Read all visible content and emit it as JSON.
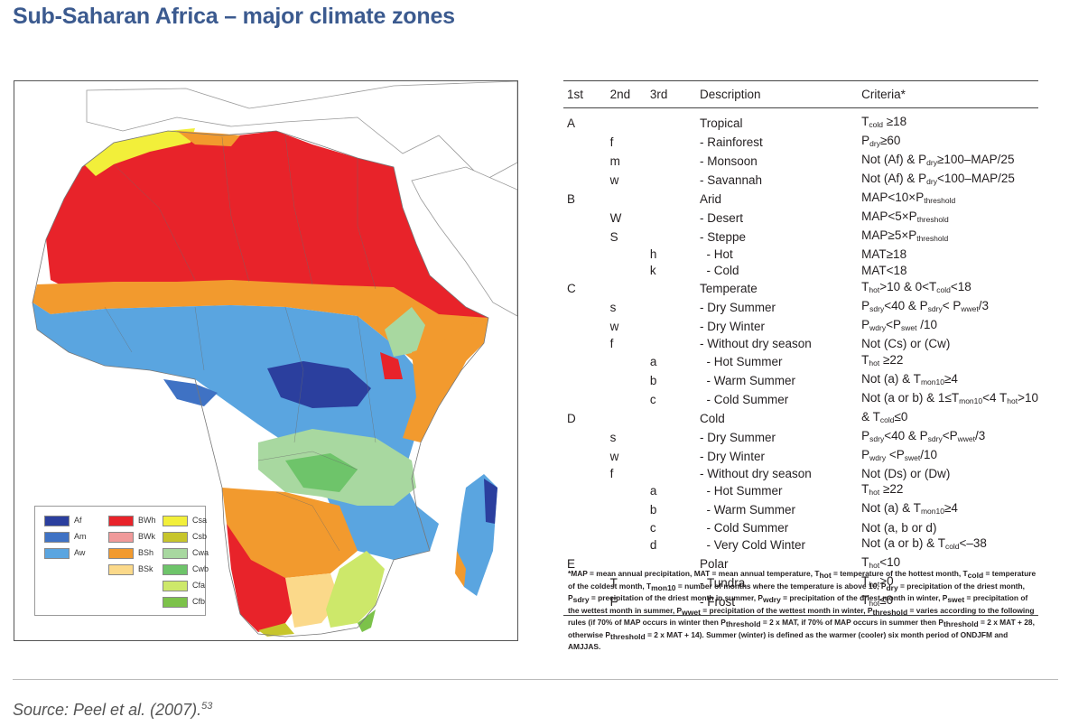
{
  "title": "Sub-Saharan Africa – major climate zones",
  "legend": [
    {
      "code": "Af",
      "color": "#2b3f9e"
    },
    {
      "code": "Am",
      "color": "#3f72c4"
    },
    {
      "code": "Aw",
      "color": "#5aa5e0"
    },
    {
      "code": "BWh",
      "color": "#e8232a"
    },
    {
      "code": "BWk",
      "color": "#f09a9a"
    },
    {
      "code": "BSh",
      "color": "#f29a2e"
    },
    {
      "code": "BSk",
      "color": "#fbd98a"
    },
    {
      "code": "Csa",
      "color": "#f2ef3a"
    },
    {
      "code": "Csb",
      "color": "#c7c52b"
    },
    {
      "code": "Cwa",
      "color": "#a8d8a0"
    },
    {
      "code": "Cwb",
      "color": "#6ec46a"
    },
    {
      "code": "Cfa",
      "color": "#cde86a"
    },
    {
      "code": "Cfb",
      "color": "#7cc24a"
    }
  ],
  "table": {
    "headers": [
      "1st",
      "2nd",
      "3rd",
      "Description",
      "Criteria*"
    ],
    "rows": [
      {
        "c1": "A",
        "c2": "",
        "c3": "",
        "desc": "Tropical",
        "crit": [
          {
            "t": "T"
          },
          {
            "s": "cold"
          },
          {
            "t": " ≥18"
          }
        ]
      },
      {
        "c1": "",
        "c2": "f",
        "c3": "",
        "desc": "- Rainforest",
        "crit": [
          {
            "t": "P"
          },
          {
            "s": "dry"
          },
          {
            "t": "≥60"
          }
        ]
      },
      {
        "c1": "",
        "c2": "m",
        "c3": "",
        "desc": "- Monsoon",
        "crit": [
          {
            "t": "Not (Af) & P"
          },
          {
            "s": "dry"
          },
          {
            "t": "≥100–MAP/25"
          }
        ]
      },
      {
        "c1": "",
        "c2": "w",
        "c3": "",
        "desc": "- Savannah",
        "crit": [
          {
            "t": "Not (Af) & P"
          },
          {
            "s": "dry"
          },
          {
            "t": "<100–MAP/25"
          }
        ]
      },
      {
        "c1": "B",
        "c2": "",
        "c3": "",
        "desc": "Arid",
        "crit": [
          {
            "t": "MAP<10×P"
          },
          {
            "s": "threshold"
          }
        ]
      },
      {
        "c1": "",
        "c2": "W",
        "c3": "",
        "desc": "- Desert",
        "crit": [
          {
            "t": "MAP<5×P"
          },
          {
            "s": "threshold"
          }
        ]
      },
      {
        "c1": "",
        "c2": "S",
        "c3": "",
        "desc": "- Steppe",
        "crit": [
          {
            "t": "MAP≥5×P"
          },
          {
            "s": "threshold"
          }
        ]
      },
      {
        "c1": "",
        "c2": "",
        "c3": "h",
        "desc": "  - Hot",
        "crit": [
          {
            "t": "MAT≥18"
          }
        ]
      },
      {
        "c1": "",
        "c2": "",
        "c3": "k",
        "desc": "  - Cold",
        "crit": [
          {
            "t": "MAT<18"
          }
        ]
      },
      {
        "c1": "C",
        "c2": "",
        "c3": "",
        "desc": "Temperate",
        "crit": [
          {
            "t": "T"
          },
          {
            "s": "hot"
          },
          {
            "t": ">10 & 0<T"
          },
          {
            "s": "cold"
          },
          {
            "t": "<18"
          }
        ]
      },
      {
        "c1": "",
        "c2": "s",
        "c3": "",
        "desc": "- Dry Summer",
        "crit": [
          {
            "t": "P"
          },
          {
            "s": "sdry"
          },
          {
            "t": "<40 & P"
          },
          {
            "s": "sdry"
          },
          {
            "t": "< P"
          },
          {
            "s": "wwet"
          },
          {
            "t": "/3"
          }
        ]
      },
      {
        "c1": "",
        "c2": "w",
        "c3": "",
        "desc": "- Dry Winter",
        "crit": [
          {
            "t": "P"
          },
          {
            "s": "wdry"
          },
          {
            "t": "<P"
          },
          {
            "s": "swet"
          },
          {
            "t": " /10"
          }
        ]
      },
      {
        "c1": "",
        "c2": "f",
        "c3": "",
        "desc": "- Without dry season",
        "crit": [
          {
            "t": "Not (Cs) or (Cw)"
          }
        ]
      },
      {
        "c1": "",
        "c2": "",
        "c3": "a",
        "desc": "  - Hot Summer",
        "crit": [
          {
            "t": "T"
          },
          {
            "s": "hot"
          },
          {
            "t": " ≥22"
          }
        ]
      },
      {
        "c1": "",
        "c2": "",
        "c3": "b",
        "desc": "  - Warm Summer",
        "crit": [
          {
            "t": "Not (a) & T"
          },
          {
            "s": "mon10"
          },
          {
            "t": "≥4"
          }
        ]
      },
      {
        "c1": "",
        "c2": "",
        "c3": "c",
        "desc": "  - Cold Summer",
        "crit": [
          {
            "t": "Not (a or b) & 1≤T"
          },
          {
            "s": "mon10"
          },
          {
            "t": "<4 T"
          },
          {
            "s": "hot"
          },
          {
            "t": ">10"
          }
        ]
      },
      {
        "c1": "D",
        "c2": "",
        "c3": "",
        "desc": "Cold",
        "crit": [
          {
            "t": "& T"
          },
          {
            "s": "cold"
          },
          {
            "t": "≤0"
          }
        ]
      },
      {
        "c1": "",
        "c2": "s",
        "c3": "",
        "desc": "- Dry Summer",
        "crit": [
          {
            "t": "P"
          },
          {
            "s": "sdry"
          },
          {
            "t": "<40 & P"
          },
          {
            "s": "sdry"
          },
          {
            "t": "<P"
          },
          {
            "s": "wwet"
          },
          {
            "t": "/3"
          }
        ]
      },
      {
        "c1": "",
        "c2": "w",
        "c3": "",
        "desc": "- Dry Winter",
        "crit": [
          {
            "t": "P"
          },
          {
            "s": "wdry"
          },
          {
            "t": " <P"
          },
          {
            "s": "swet"
          },
          {
            "t": "/10"
          }
        ]
      },
      {
        "c1": "",
        "c2": "f",
        "c3": "",
        "desc": "- Without dry season",
        "crit": [
          {
            "t": "Not (Ds) or (Dw)"
          }
        ]
      },
      {
        "c1": "",
        "c2": "",
        "c3": "a",
        "desc": "  - Hot Summer",
        "crit": [
          {
            "t": "T"
          },
          {
            "s": "hot"
          },
          {
            "t": " ≥22"
          }
        ]
      },
      {
        "c1": "",
        "c2": "",
        "c3": "b",
        "desc": "  - Warm Summer",
        "crit": [
          {
            "t": "Not (a) & T"
          },
          {
            "s": "mon10"
          },
          {
            "t": "≥4"
          }
        ]
      },
      {
        "c1": "",
        "c2": "",
        "c3": "c",
        "desc": "  - Cold Summer",
        "crit": [
          {
            "t": "Not (a, b or d)"
          }
        ]
      },
      {
        "c1": "",
        "c2": "",
        "c3": "d",
        "desc": "  - Very Cold Winter",
        "crit": [
          {
            "t": "Not (a or b) & T"
          },
          {
            "s": "cold"
          },
          {
            "t": "<–38"
          }
        ]
      },
      {
        "c1": "E",
        "c2": "",
        "c3": "",
        "desc": "Polar",
        "crit": [
          {
            "t": "T"
          },
          {
            "s": "hot"
          },
          {
            "t": "<10"
          }
        ]
      },
      {
        "c1": "",
        "c2": "T",
        "c3": "",
        "desc": "- Tundra",
        "crit": [
          {
            "t": "T"
          },
          {
            "s": "hot"
          },
          {
            "t": ">0"
          }
        ]
      },
      {
        "c1": "",
        "c2": "F",
        "c3": "",
        "desc": "- Frost",
        "crit": [
          {
            "t": "T"
          },
          {
            "s": "hot"
          },
          {
            "t": "≤0"
          }
        ]
      }
    ]
  },
  "footnote": [
    {
      "t": "*MAP = mean annual precipitation, MAT = mean annual temperature, T"
    },
    {
      "s": "hot"
    },
    {
      "t": " = temperature of the hottest month, T"
    },
    {
      "s": "cold"
    },
    {
      "t": " = temperature of the coldest month, T"
    },
    {
      "s": "mon10"
    },
    {
      "t": " = number of months where the temperature is above 10, P"
    },
    {
      "s": "dry"
    },
    {
      "t": " = precipitation of the driest month, P"
    },
    {
      "s": "sdry"
    },
    {
      "t": " = precipitation of the driest month in summer, P"
    },
    {
      "s": "wdry"
    },
    {
      "t": " = precipitation of the driest month in winter, P"
    },
    {
      "s": "swet"
    },
    {
      "t": " = precipitation of the wettest month in summer, P"
    },
    {
      "s": "wwet"
    },
    {
      "t": " = precipitation of the wettest month in winter, P"
    },
    {
      "s": "threshold"
    },
    {
      "t": " = varies according to the following rules (if 70% of MAP occurs in winter then P"
    },
    {
      "s": "threshold"
    },
    {
      "t": " = 2 x MAT, if 70% of MAP occurs in summer then P"
    },
    {
      "s": "threshold"
    },
    {
      "t": " = 2 x MAT + 28, otherwise P"
    },
    {
      "s": "threshold"
    },
    {
      "t": " = 2 x MAT + 14). Summer (winter) is defined as the warmer (cooler) six month period of ONDJFM and AMJJAS."
    }
  ],
  "source": {
    "text": "Source: Peel et al. (2007).",
    "ref": "53"
  }
}
